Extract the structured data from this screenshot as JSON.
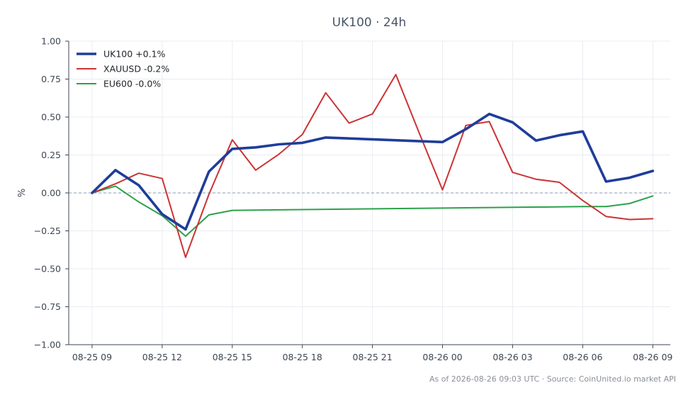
{
  "chart_data": {
    "type": "line",
    "title": "UK100 · 24h",
    "ylabel": "%",
    "xlabel": "",
    "ylim": [
      -1.0,
      1.0
    ],
    "yticks": [
      1.0,
      0.75,
      0.5,
      0.25,
      0.0,
      -0.25,
      -0.5,
      -0.75,
      -1.0
    ],
    "ytick_labels": [
      "1.00",
      "0.75",
      "0.50",
      "0.25",
      "0.00",
      "−0.25",
      "−0.50",
      "−0.75",
      "−1.00"
    ],
    "xlim": [
      "2026-08-25 08:00",
      "2026-08-26 09:45"
    ],
    "xticks": [
      "2026-08-25 09:00",
      "2026-08-25 12:00",
      "2026-08-25 15:00",
      "2026-08-25 18:00",
      "2026-08-25 21:00",
      "2026-08-26 00:00",
      "2026-08-26 03:00",
      "2026-08-26 06:00",
      "2026-08-26 09:00"
    ],
    "xtick_labels": [
      "08-25 09",
      "08-25 12",
      "08-25 15",
      "08-25 18",
      "08-25 21",
      "08-26 00",
      "08-26 03",
      "08-26 06",
      "08-26 09"
    ],
    "grid": true,
    "zero_line": true,
    "legend_position": "top-left",
    "series": [
      {
        "name": "UK100 +0.1%",
        "color": "#1f3d99",
        "points": [
          [
            "2026-08-25 09:00",
            0.0
          ],
          [
            "2026-08-25 10:00",
            0.15
          ],
          [
            "2026-08-25 11:00",
            0.05
          ],
          [
            "2026-08-25 12:00",
            -0.14
          ],
          [
            "2026-08-25 13:00",
            -0.24
          ],
          [
            "2026-08-25 14:00",
            0.14
          ],
          [
            "2026-08-25 15:00",
            0.29
          ],
          [
            "2026-08-25 16:00",
            0.3
          ],
          [
            "2026-08-25 17:00",
            0.32
          ],
          [
            "2026-08-25 18:00",
            0.33
          ],
          [
            "2026-08-25 19:00",
            0.365
          ],
          [
            "2026-08-26 00:00",
            0.335
          ],
          [
            "2026-08-26 01:00",
            0.42
          ],
          [
            "2026-08-26 02:00",
            0.52
          ],
          [
            "2026-08-26 03:00",
            0.465
          ],
          [
            "2026-08-26 04:00",
            0.345
          ],
          [
            "2026-08-26 05:00",
            0.38
          ],
          [
            "2026-08-26 06:00",
            0.405
          ],
          [
            "2026-08-26 07:00",
            0.075
          ],
          [
            "2026-08-26 08:00",
            0.1
          ],
          [
            "2026-08-26 09:00",
            0.145
          ]
        ]
      },
      {
        "name": "XAUUSD -0.2%",
        "color": "#cc3333",
        "points": [
          [
            "2026-08-25 09:00",
            0.0
          ],
          [
            "2026-08-25 10:00",
            0.06
          ],
          [
            "2026-08-25 11:00",
            0.13
          ],
          [
            "2026-08-25 12:00",
            0.095
          ],
          [
            "2026-08-25 13:00",
            -0.425
          ],
          [
            "2026-08-25 14:00",
            -0.01
          ],
          [
            "2026-08-25 15:00",
            0.35
          ],
          [
            "2026-08-25 16:00",
            0.15
          ],
          [
            "2026-08-25 17:00",
            0.255
          ],
          [
            "2026-08-25 18:00",
            0.385
          ],
          [
            "2026-08-25 19:00",
            0.66
          ],
          [
            "2026-08-25 20:00",
            0.46
          ],
          [
            "2026-08-25 21:00",
            0.52
          ],
          [
            "2026-08-25 22:00",
            0.78
          ],
          [
            "2026-08-25 23:00",
            0.395
          ],
          [
            "2026-08-26 00:00",
            0.02
          ],
          [
            "2026-08-26 01:00",
            0.445
          ],
          [
            "2026-08-26 02:00",
            0.47
          ],
          [
            "2026-08-26 03:00",
            0.135
          ],
          [
            "2026-08-26 04:00",
            0.09
          ],
          [
            "2026-08-26 05:00",
            0.07
          ],
          [
            "2026-08-26 06:00",
            -0.05
          ],
          [
            "2026-08-26 07:00",
            -0.155
          ],
          [
            "2026-08-26 08:00",
            -0.175
          ],
          [
            "2026-08-26 09:00",
            -0.17
          ]
        ]
      },
      {
        "name": "EU600 -0.0%",
        "color": "#2ca14a",
        "points": [
          [
            "2026-08-25 09:00",
            0.0
          ],
          [
            "2026-08-25 10:00",
            0.045
          ],
          [
            "2026-08-25 11:00",
            -0.06
          ],
          [
            "2026-08-25 12:00",
            -0.15
          ],
          [
            "2026-08-25 13:00",
            -0.285
          ],
          [
            "2026-08-25 14:00",
            -0.145
          ],
          [
            "2026-08-25 15:00",
            -0.115
          ],
          [
            "2026-08-26 00:00",
            -0.1
          ],
          [
            "2026-08-26 06:00",
            -0.09
          ],
          [
            "2026-08-26 07:00",
            -0.09
          ],
          [
            "2026-08-26 08:00",
            -0.07
          ],
          [
            "2026-08-26 09:00",
            -0.02
          ]
        ]
      }
    ]
  },
  "footer": "As of 2026-08-26 09:03 UTC · Source: CoinUnited.io market API"
}
